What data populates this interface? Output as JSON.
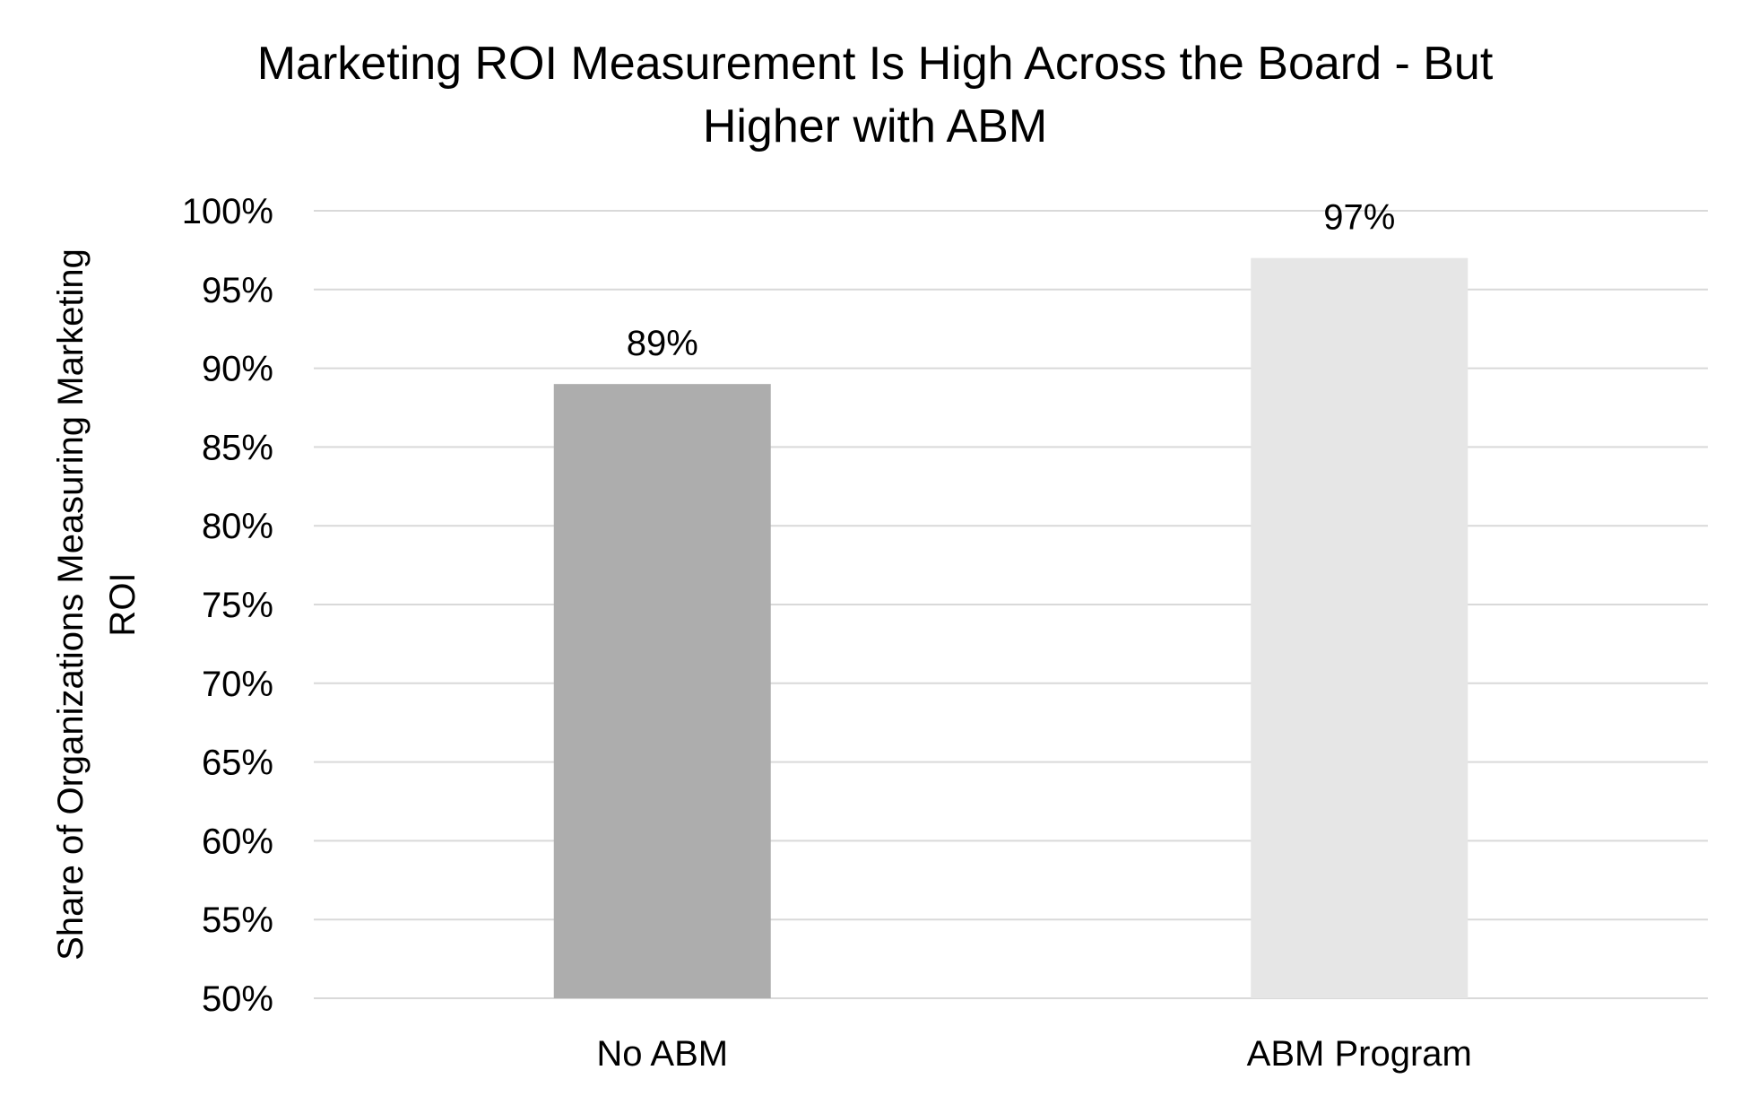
{
  "chart_data": {
    "type": "bar",
    "title_lines": [
      "Marketing ROI Measurement Is High Across the Board - But",
      "Higher with ABM"
    ],
    "xlabel": "",
    "ylabel_lines": [
      "Share of Organizations Measuring Marketing",
      "ROI"
    ],
    "categories": [
      "No ABM",
      "ABM Program"
    ],
    "values": [
      0.89,
      0.97
    ],
    "data_labels": [
      "89%",
      "97%"
    ],
    "bar_colors": [
      "#ADADAD",
      "#E6E6E6"
    ],
    "ylim": [
      0.5,
      1.0
    ],
    "y_ticks": [
      {
        "value": 0.5,
        "label": "50%"
      },
      {
        "value": 0.55,
        "label": "55%"
      },
      {
        "value": 0.6,
        "label": "60%"
      },
      {
        "value": 0.65,
        "label": "65%"
      },
      {
        "value": 0.7,
        "label": "70%"
      },
      {
        "value": 0.75,
        "label": "75%"
      },
      {
        "value": 0.8,
        "label": "80%"
      },
      {
        "value": 0.85,
        "label": "85%"
      },
      {
        "value": 0.9,
        "label": "90%"
      },
      {
        "value": 0.95,
        "label": "95%"
      },
      {
        "value": 1.0,
        "label": "100%"
      }
    ],
    "grid": true,
    "gridline_color": "#D9D9D9",
    "legend": "none"
  }
}
